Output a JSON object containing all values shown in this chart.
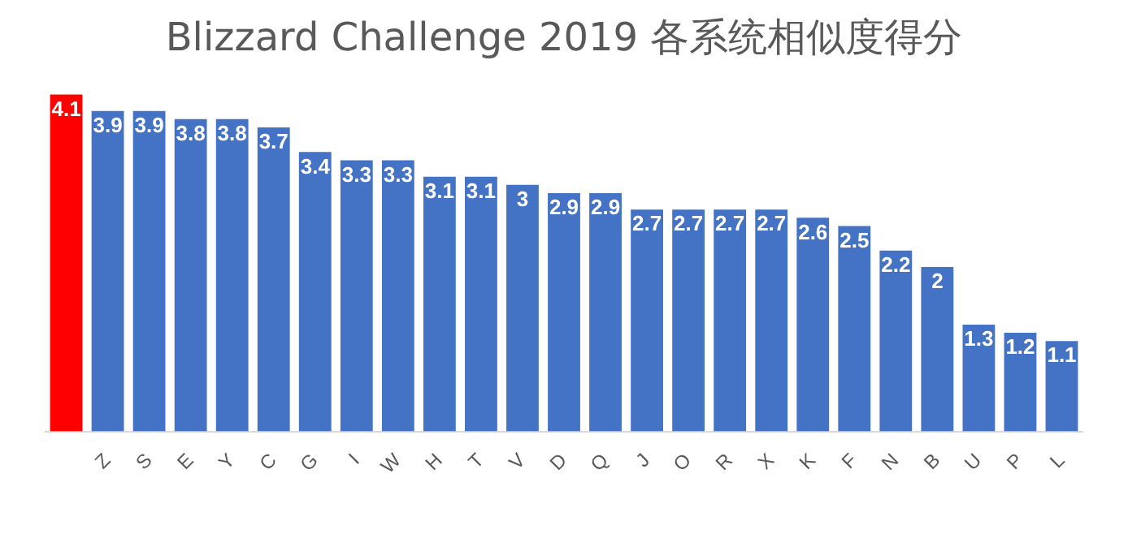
{
  "chart_data": {
    "type": "bar",
    "title": "Blizzard Challenge 2019 各系统相似度得分",
    "categories": [
      null,
      "Z",
      "S",
      "E",
      "Y",
      "C",
      "G",
      "I",
      "W",
      "H",
      "T",
      "V",
      "D",
      "Q",
      "J",
      "O",
      "R",
      "X",
      "K",
      "F",
      "N",
      "B",
      "U",
      "P",
      "L"
    ],
    "values": [
      4.1,
      3.9,
      3.9,
      3.8,
      3.8,
      3.7,
      3.4,
      3.3,
      3.3,
      3.1,
      3.1,
      3,
      2.9,
      2.9,
      2.7,
      2.7,
      2.7,
      2.7,
      2.6,
      2.5,
      2.2,
      2,
      1.3,
      1.2,
      1.1
    ],
    "colors": [
      "#ff0000",
      "#4472c4",
      "#4472c4",
      "#4472c4",
      "#4472c4",
      "#4472c4",
      "#4472c4",
      "#4472c4",
      "#4472c4",
      "#4472c4",
      "#4472c4",
      "#4472c4",
      "#4472c4",
      "#4472c4",
      "#4472c4",
      "#4472c4",
      "#4472c4",
      "#4472c4",
      "#4472c4",
      "#4472c4",
      "#4472c4",
      "#4472c4",
      "#4472c4",
      "#4472c4",
      "#4472c4"
    ],
    "data_labels": true,
    "grid": false,
    "legend": false
  }
}
